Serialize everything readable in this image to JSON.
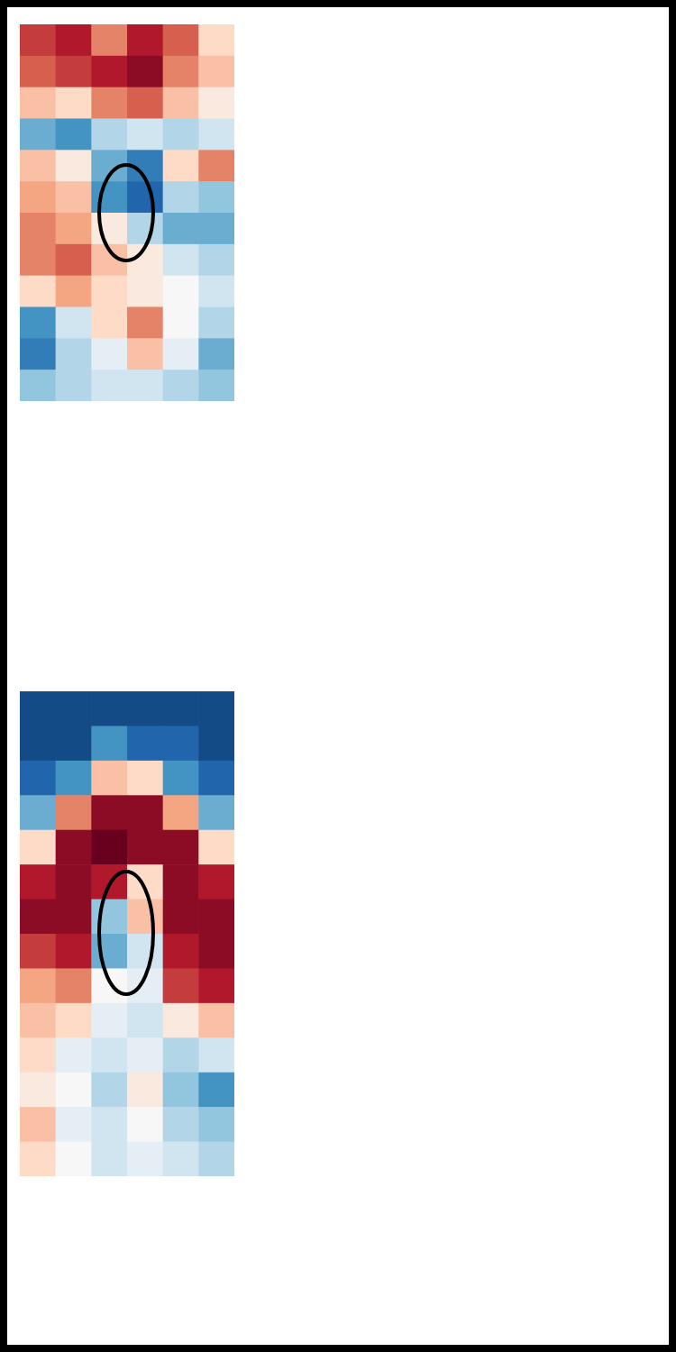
{
  "chart_data": [
    {
      "type": "heatmap",
      "zlim": [
        -1,
        1
      ],
      "tick_labels": false,
      "cells": [
        [
          0.7,
          0.8,
          0.5,
          0.8,
          0.6,
          0.2
        ],
        [
          0.6,
          0.7,
          0.8,
          0.9,
          0.5,
          0.3
        ],
        [
          0.3,
          0.2,
          0.5,
          0.6,
          0.3,
          0.1
        ],
        [
          -0.5,
          -0.6,
          -0.3,
          -0.2,
          -0.3,
          -0.2
        ],
        [
          0.3,
          0.1,
          -0.5,
          -0.7,
          0.2,
          0.5
        ],
        [
          0.4,
          0.3,
          -0.6,
          -0.8,
          -0.3,
          -0.4
        ],
        [
          0.5,
          0.4,
          0.1,
          -0.3,
          -0.5,
          -0.5
        ],
        [
          0.5,
          0.6,
          0.3,
          0.1,
          -0.2,
          -0.3
        ],
        [
          0.2,
          0.4,
          0.2,
          0.1,
          0.0,
          -0.2
        ],
        [
          -0.6,
          -0.2,
          0.2,
          0.5,
          0.0,
          -0.3
        ],
        [
          -0.7,
          -0.3,
          -0.1,
          0.3,
          -0.1,
          -0.5
        ],
        [
          -0.4,
          -0.3,
          -0.2,
          -0.2,
          -0.3,
          -0.4
        ]
      ]
    },
    {
      "type": "heatmap",
      "zlim": [
        -1,
        1
      ],
      "tick_labels": false,
      "cells": [
        [
          -0.9,
          -0.9,
          -0.9,
          -0.9,
          -0.9,
          -0.9
        ],
        [
          -0.9,
          -0.9,
          -0.6,
          -0.8,
          -0.8,
          -0.9
        ],
        [
          -0.8,
          -0.6,
          0.3,
          0.2,
          -0.6,
          -0.8
        ],
        [
          -0.5,
          0.5,
          0.9,
          0.9,
          0.4,
          -0.5
        ],
        [
          0.2,
          0.9,
          1.0,
          0.9,
          0.9,
          0.2
        ],
        [
          0.8,
          0.9,
          0.8,
          0.2,
          0.9,
          0.8
        ],
        [
          0.9,
          0.9,
          -0.4,
          0.3,
          0.9,
          0.9
        ],
        [
          0.7,
          0.8,
          -0.5,
          -0.2,
          0.8,
          0.9
        ],
        [
          0.4,
          0.5,
          0.0,
          -0.1,
          0.7,
          0.8
        ],
        [
          0.3,
          0.2,
          -0.1,
          -0.2,
          0.1,
          0.3
        ],
        [
          0.2,
          -0.1,
          -0.2,
          -0.1,
          -0.3,
          -0.2
        ],
        [
          0.1,
          0.0,
          -0.3,
          0.1,
          -0.4,
          -0.6
        ],
        [
          0.3,
          -0.1,
          -0.2,
          0.0,
          -0.3,
          -0.4
        ],
        [
          0.2,
          0.0,
          -0.2,
          -0.1,
          -0.2,
          -0.3
        ]
      ]
    }
  ]
}
